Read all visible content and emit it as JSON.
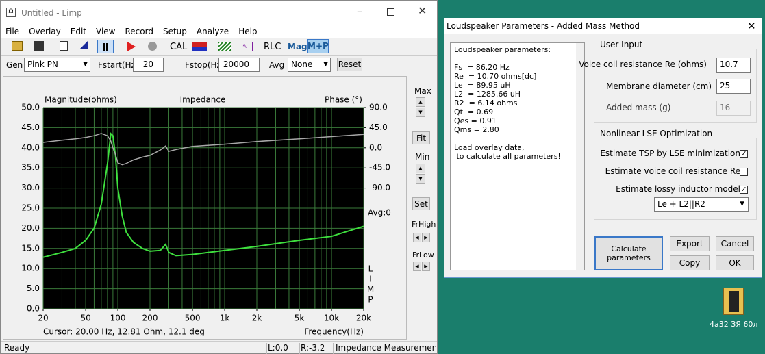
{
  "limp_window": {
    "title": "Untitled - Limp",
    "menu": [
      "File",
      "Overlay",
      "Edit",
      "View",
      "Record",
      "Setup",
      "Analyze",
      "Help"
    ],
    "toolbar": {
      "cal": "CAL",
      "rlc": "RLC",
      "mag": "Mag",
      "mp": "M+P"
    },
    "settings": {
      "gen_label": "Gen",
      "gen_value": "Pink PN",
      "fstart_label": "Fstart(Hz)",
      "fstart_value": "20",
      "fstop_label": "Fstop(Hz)",
      "fstop_value": "20000",
      "avg_label": "Avg",
      "avg_value": "None",
      "reset": "Reset"
    },
    "side_controls": {
      "max": "Max",
      "fit": "Fit",
      "min": "Min",
      "set": "Set",
      "frhigh": "FrHigh",
      "frlow": "FrLow",
      "avg": "Avg:0"
    },
    "status": {
      "ready": "Ready",
      "left": "L:0.0",
      "right": "R:-3.2",
      "mode": "Impedance Measuremen"
    }
  },
  "chart_data": {
    "type": "line",
    "title": "Impedance",
    "y_label": "Magnitude(ohms)",
    "y2_label": "Phase (°)",
    "x_label": "Frequency(Hz)",
    "cursor": "Cursor: 20.00 Hz, 12.81 Ohm, 12.1 deg",
    "side_label": [
      "L",
      "I",
      "M",
      "P"
    ],
    "log_x": true,
    "grid": true,
    "background": "#000000",
    "grid_color": "#3a7a3a",
    "xlim": [
      20,
      20000
    ],
    "xticks": [
      20,
      50,
      100,
      200,
      500,
      {
        "value": 1000,
        "label": "1k"
      },
      {
        "value": 2000,
        "label": "2k"
      },
      {
        "value": 5000,
        "label": "5k"
      },
      {
        "value": 10000,
        "label": "10k"
      },
      {
        "value": 20000,
        "label": "20k"
      }
    ],
    "x_grid": [
      20,
      30,
      40,
      50,
      60,
      70,
      80,
      90,
      100,
      200,
      300,
      400,
      500,
      600,
      700,
      800,
      900,
      1000,
      2000,
      3000,
      4000,
      5000,
      6000,
      7000,
      8000,
      9000,
      10000,
      20000
    ],
    "ylim": [
      0,
      50
    ],
    "yticks": [
      {
        "value": 0,
        "label": "0.0"
      },
      {
        "value": 5,
        "label": "5.0"
      },
      {
        "value": 10,
        "label": "10.0"
      },
      {
        "value": 15,
        "label": "15.0"
      },
      {
        "value": 20,
        "label": "20.0"
      },
      {
        "value": 25,
        "label": "25.0"
      },
      {
        "value": 30,
        "label": "30.0"
      },
      {
        "value": 35,
        "label": "35.0"
      },
      {
        "value": 40,
        "label": "40.0"
      },
      {
        "value": 45,
        "label": "45.0"
      },
      {
        "value": 50,
        "label": "50.0"
      }
    ],
    "y2lim": [
      -360,
      90
    ],
    "y2ticks": [
      {
        "value": 90,
        "label": "90.0"
      },
      {
        "value": 45,
        "label": "45.0"
      },
      {
        "value": 0,
        "label": "0.0"
      },
      {
        "value": -45,
        "label": "-45.0"
      },
      {
        "value": -90,
        "label": "-90.0"
      }
    ],
    "x": [
      20,
      30,
      40,
      50,
      60,
      70,
      80,
      86,
      90,
      95,
      100,
      110,
      120,
      140,
      170,
      200,
      250,
      280,
      300,
      350,
      500,
      1000,
      2000,
      5000,
      10000,
      20000
    ],
    "series": [
      {
        "color": "#3ee03e",
        "values": [
          12.8,
          14,
          15,
          17,
          20,
          26,
          36,
          43.5,
          43,
          38,
          30,
          23,
          19,
          16.5,
          15,
          14.3,
          14.5,
          16,
          14,
          13.2,
          13.5,
          14.5,
          15.5,
          17,
          18,
          20.5
        ]
      },
      {
        "color": "#a8a8a8",
        "axis": "y2",
        "values": [
          12,
          17,
          20,
          23,
          27,
          32,
          27,
          15,
          0,
          -15,
          -34,
          -38,
          -35,
          -27,
          -21,
          -17,
          -5,
          4,
          -8,
          -4,
          3,
          8,
          14,
          20,
          25,
          30
        ]
      }
    ]
  },
  "dialog": {
    "title": "Loudspeaker Parameters - Added Mass Method",
    "report": [
      "Loudspeaker parameters:",
      "",
      "Fs  = 86.20 Hz",
      "Re  = 10.70 ohms[dc]",
      "Le  = 89.95 uH",
      "L2  = 1285.66 uH",
      "R2  = 6.14 ohms",
      "Qt  = 0.69",
      "Qes = 0.91",
      "Qms = 2.80",
      "",
      "Load overlay data,",
      " to calculate all parameters!"
    ],
    "user_input": {
      "title": "User Input",
      "re_label": "Voice coil resistance Re (ohms)",
      "re_value": "10.7",
      "diam_label": "Membrane diameter (cm)",
      "diam_value": "25",
      "mass_label": "Added mass (g)",
      "mass_value": "16"
    },
    "lse": {
      "title": "Nonlinear LSE Optimization",
      "options": [
        {
          "label": "Estimate TSP by LSE minimization",
          "checked": true
        },
        {
          "label": "Estimate voice coil resistance Re",
          "checked": false
        },
        {
          "label": "Estimate lossy inductor model",
          "checked": true
        }
      ],
      "model": "Le + L2||R2"
    },
    "buttons": {
      "calculate": "Calculate parameters",
      "export": "Export",
      "cancel": "Cancel",
      "copy": "Copy",
      "ok": "OK"
    }
  },
  "desktop": {
    "icon_label": "4a32 ЗЯ 60л"
  }
}
